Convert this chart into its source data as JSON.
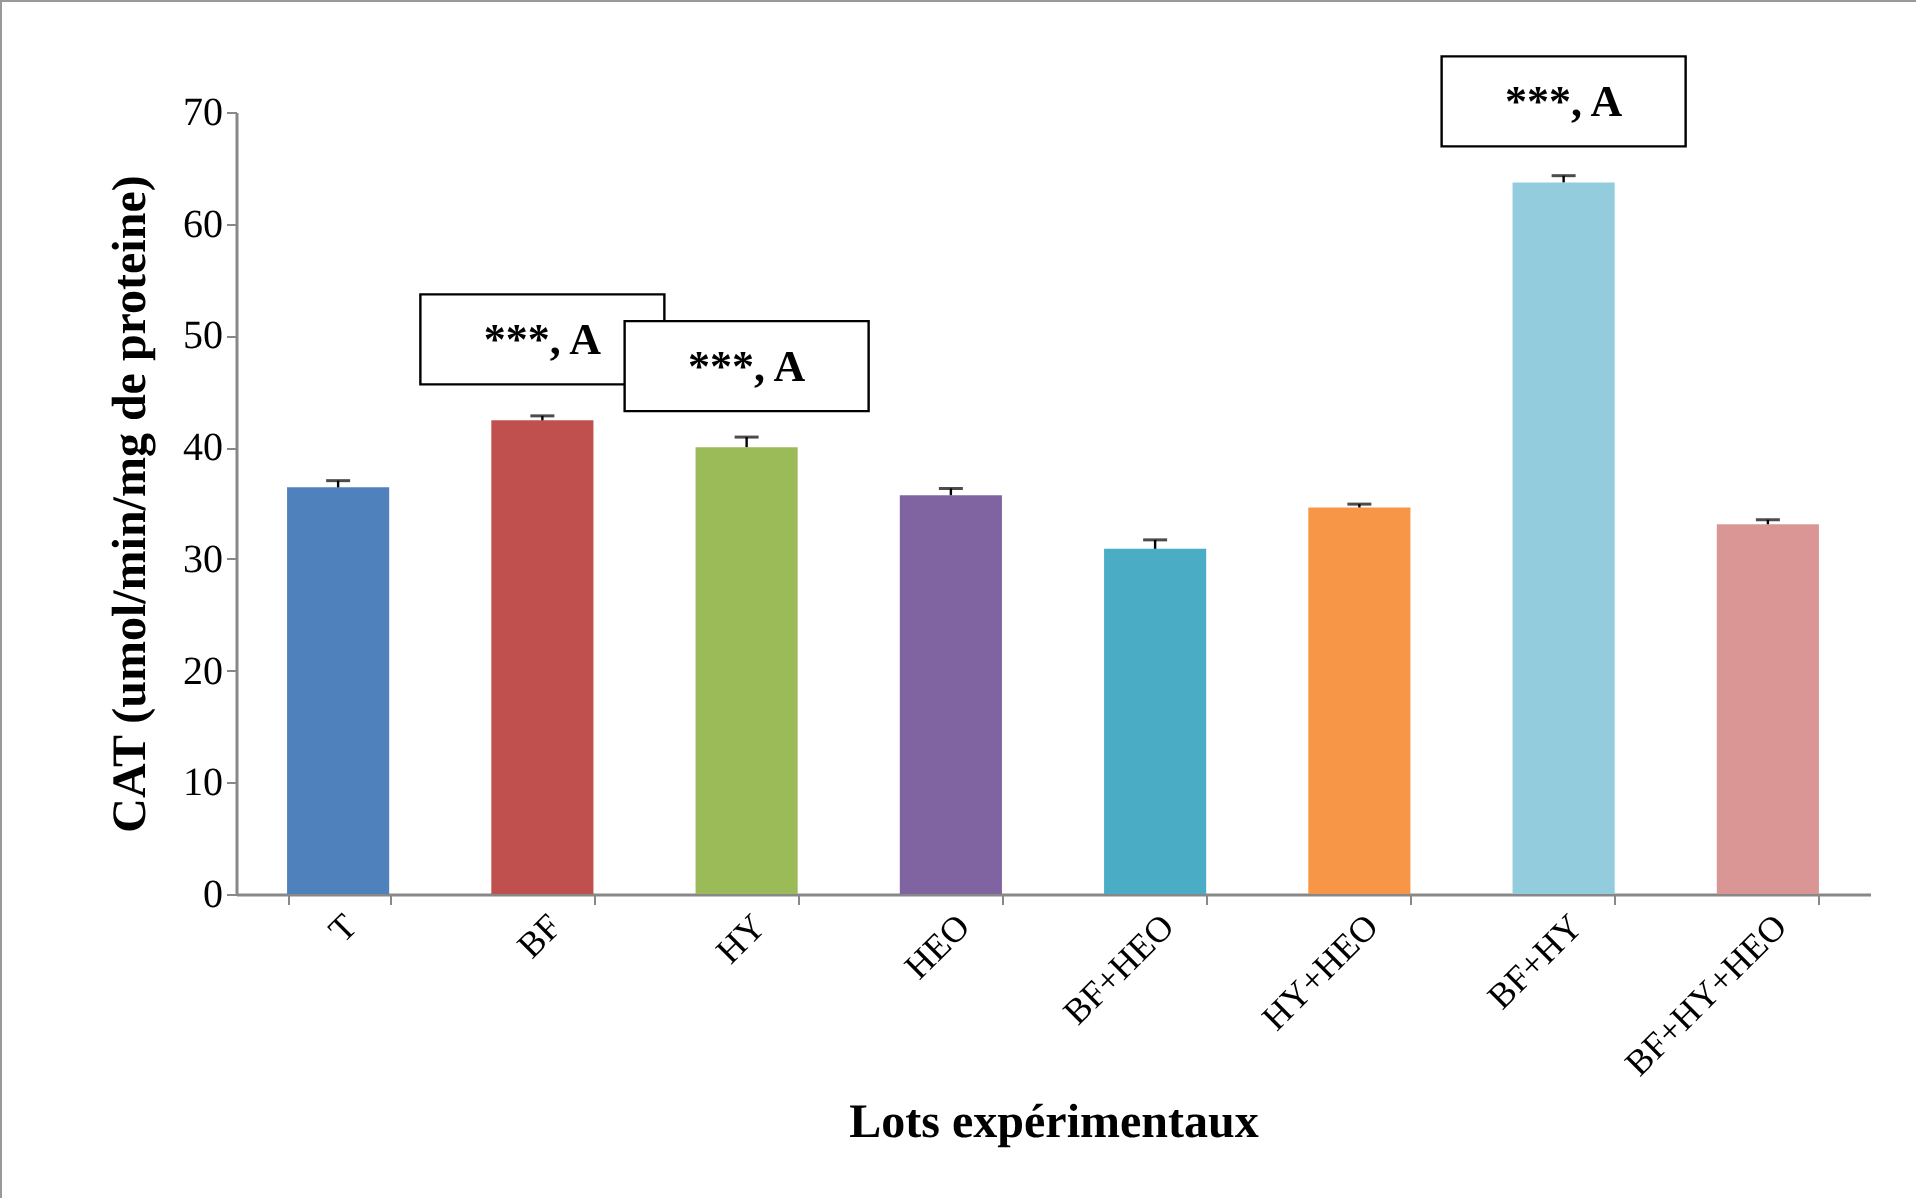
{
  "chart_data": {
    "type": "bar",
    "xlabel": "Lots expérimentaux",
    "ylabel": "CAT (umol/min/mg de proteine)",
    "categories": [
      "T",
      "BF",
      "HY",
      "HEO",
      "BF+HEO",
      "HY+HEO",
      "BF+HY",
      "BF+HY+HEO"
    ],
    "values": [
      36.4,
      42.4,
      40.0,
      35.7,
      30.9,
      34.6,
      63.7,
      33.1
    ],
    "colors": [
      "#4f81bd",
      "#c0504d",
      "#9bbb59",
      "#8064a2",
      "#4bacc6",
      "#f79646",
      "#93cddd",
      "#d99694"
    ],
    "errors": [
      [
        36.4,
        37.0
      ],
      [
        42.4,
        42.8
      ],
      [
        40.0,
        40.9
      ],
      [
        35.7,
        36.3
      ],
      [
        30.9,
        31.7
      ],
      [
        34.6,
        34.9
      ],
      [
        63.7,
        64.3
      ],
      [
        33.1,
        33.5
      ]
    ],
    "ylim": [
      0,
      70
    ],
    "yticks": [
      0,
      10,
      20,
      30,
      40,
      50,
      60,
      70
    ],
    "grid": false,
    "legend": false,
    "annotations": [
      {
        "text": "***, A",
        "x": "BF",
        "y": 42.4
      },
      {
        "text": "***, A",
        "x": "HY",
        "y": 40.0
      },
      {
        "text": "***, A",
        "x": "BF+HY",
        "y": 63.7
      }
    ]
  }
}
